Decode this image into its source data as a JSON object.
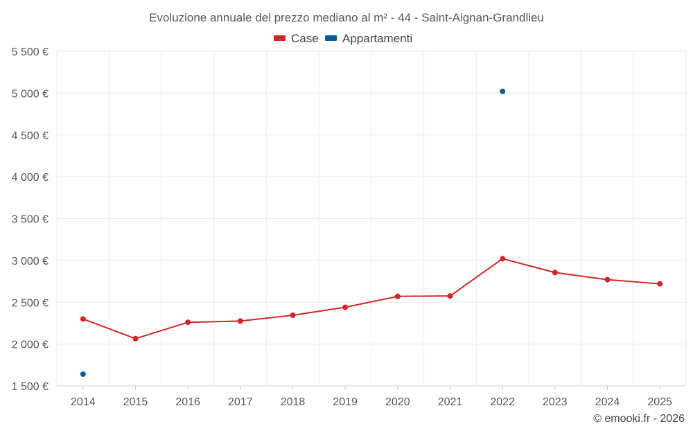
{
  "chart_data": {
    "type": "line",
    "title": "Evoluzione annuale del prezzo mediano al m² - 44 - Saint-Aignan-Grandlieu",
    "categories": [
      "2014",
      "2015",
      "2016",
      "2017",
      "2018",
      "2019",
      "2020",
      "2021",
      "2022",
      "2023",
      "2024",
      "2025"
    ],
    "ylim": [
      1500,
      5500
    ],
    "yticks": [
      1500,
      2000,
      2500,
      3000,
      3500,
      4000,
      4500,
      5000,
      5500
    ],
    "ytick_labels": [
      "1 500 €",
      "2 000 €",
      "2 500 €",
      "3 000 €",
      "3 500 €",
      "4 000 €",
      "4 500 €",
      "5 000 €",
      "5 500 €"
    ],
    "grid": true,
    "legend_position": "top-center",
    "series": [
      {
        "name": "Case",
        "color": "#d32528",
        "values": [
          2300,
          2065,
          2260,
          2275,
          2345,
          2440,
          2570,
          2575,
          3020,
          2855,
          2770,
          2720
        ]
      },
      {
        "name": "Appartamenti",
        "color": "#0a5c99",
        "values": [
          1640,
          null,
          null,
          null,
          null,
          null,
          null,
          null,
          5020,
          null,
          null,
          null
        ]
      }
    ]
  },
  "credit": "© emooki.fr - 2026"
}
